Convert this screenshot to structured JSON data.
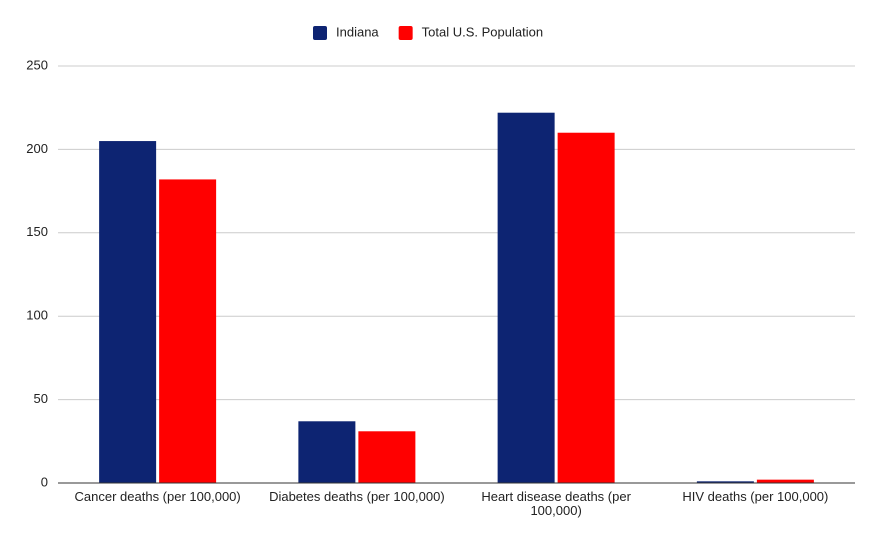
{
  "chart_data": {
    "type": "bar",
    "categories": [
      "Cancer deaths (per 100,000)",
      "Diabetes deaths (per 100,000)",
      "Heart disease deaths (per 100,000)",
      "HIV deaths (per 100,000)"
    ],
    "series": [
      {
        "name": "Indiana",
        "color": "#0d2472",
        "values": [
          205,
          37,
          222,
          1
        ]
      },
      {
        "name": "Total U.S. Population",
        "color": "#ff0000",
        "values": [
          182,
          31,
          210,
          2
        ]
      }
    ],
    "ylim": [
      0,
      250
    ],
    "yticks": [
      0,
      50,
      100,
      150,
      200,
      250
    ],
    "grid": true,
    "legend": "top"
  }
}
